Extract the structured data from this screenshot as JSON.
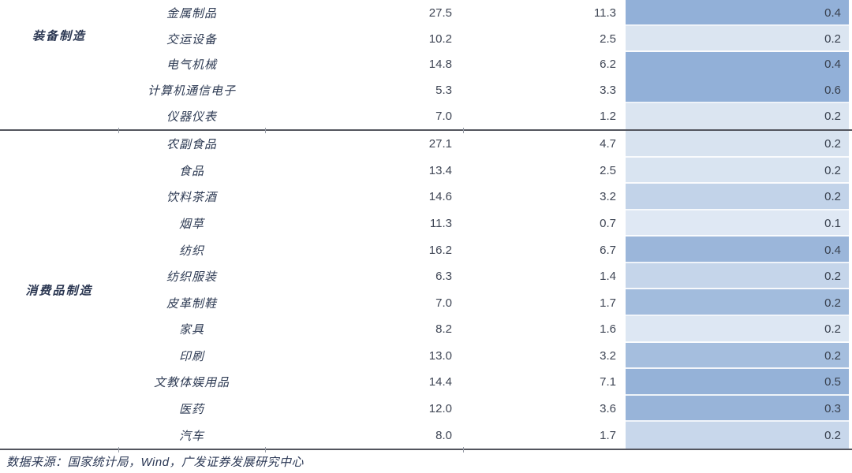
{
  "table": {
    "highlight_colors": {
      "dark": "#92b0d8",
      "medium": "#a3bcdd",
      "light_medium": "#c5d5ea",
      "light": "#d9e4f1",
      "lightest": "#dfe8f4"
    },
    "sections": [
      {
        "category": "装备制造",
        "rows": [
          {
            "industry": "金属制品",
            "v1": "27.5",
            "v2": "11.3",
            "v3": "0.4",
            "shade": "#92b0d8"
          },
          {
            "industry": "交运设备",
            "v1": "10.2",
            "v2": "2.5",
            "v3": "0.2",
            "shade": "#dbe5f1"
          },
          {
            "industry": "电气机械",
            "v1": "14.8",
            "v2": "6.2",
            "v3": "0.4",
            "shade": "#92b0d8"
          },
          {
            "industry": "计算机通信电子",
            "v1": "5.3",
            "v2": "3.3",
            "v3": "0.6",
            "shade": "#92b0d8"
          },
          {
            "industry": "仪器仪表",
            "v1": "7.0",
            "v2": "1.2",
            "v3": "0.2",
            "shade": "#dbe5f1"
          }
        ]
      },
      {
        "category": "消费品制造",
        "rows": [
          {
            "industry": "农副食品",
            "v1": "27.1",
            "v2": "4.7",
            "v3": "0.2",
            "shade": "#d8e3f0"
          },
          {
            "industry": "食品",
            "v1": "13.4",
            "v2": "2.5",
            "v3": "0.2",
            "shade": "#d9e4f1"
          },
          {
            "industry": "饮料茶酒",
            "v1": "14.6",
            "v2": "3.2",
            "v3": "0.2",
            "shade": "#c2d3e9"
          },
          {
            "industry": "烟草",
            "v1": "11.3",
            "v2": "0.7",
            "v3": "0.1",
            "shade": "#dfe8f4"
          },
          {
            "industry": "纺织",
            "v1": "16.2",
            "v2": "6.7",
            "v3": "0.4",
            "shade": "#9bb6da"
          },
          {
            "industry": "纺织服装",
            "v1": "6.3",
            "v2": "1.4",
            "v3": "0.2",
            "shade": "#c5d5ea"
          },
          {
            "industry": "皮革制鞋",
            "v1": "7.0",
            "v2": "1.7",
            "v3": "0.2",
            "shade": "#a2bcdd"
          },
          {
            "industry": "家具",
            "v1": "8.2",
            "v2": "1.6",
            "v3": "0.2",
            "shade": "#dde7f3"
          },
          {
            "industry": "印刷",
            "v1": "13.0",
            "v2": "3.2",
            "v3": "0.2",
            "shade": "#a5bede"
          },
          {
            "industry": "文教体娱用品",
            "v1": "14.4",
            "v2": "7.1",
            "v3": "0.5",
            "shade": "#95b2d8"
          },
          {
            "industry": "医药",
            "v1": "12.0",
            "v2": "3.6",
            "v3": "0.3",
            "shade": "#98b4d9"
          },
          {
            "industry": "汽车",
            "v1": "8.0",
            "v2": "1.7",
            "v3": "0.2",
            "shade": "#c8d7eb"
          }
        ]
      }
    ],
    "footer": {
      "source": "数据来源：国家统计局，Wind，广发证券发展研究中心"
    }
  }
}
